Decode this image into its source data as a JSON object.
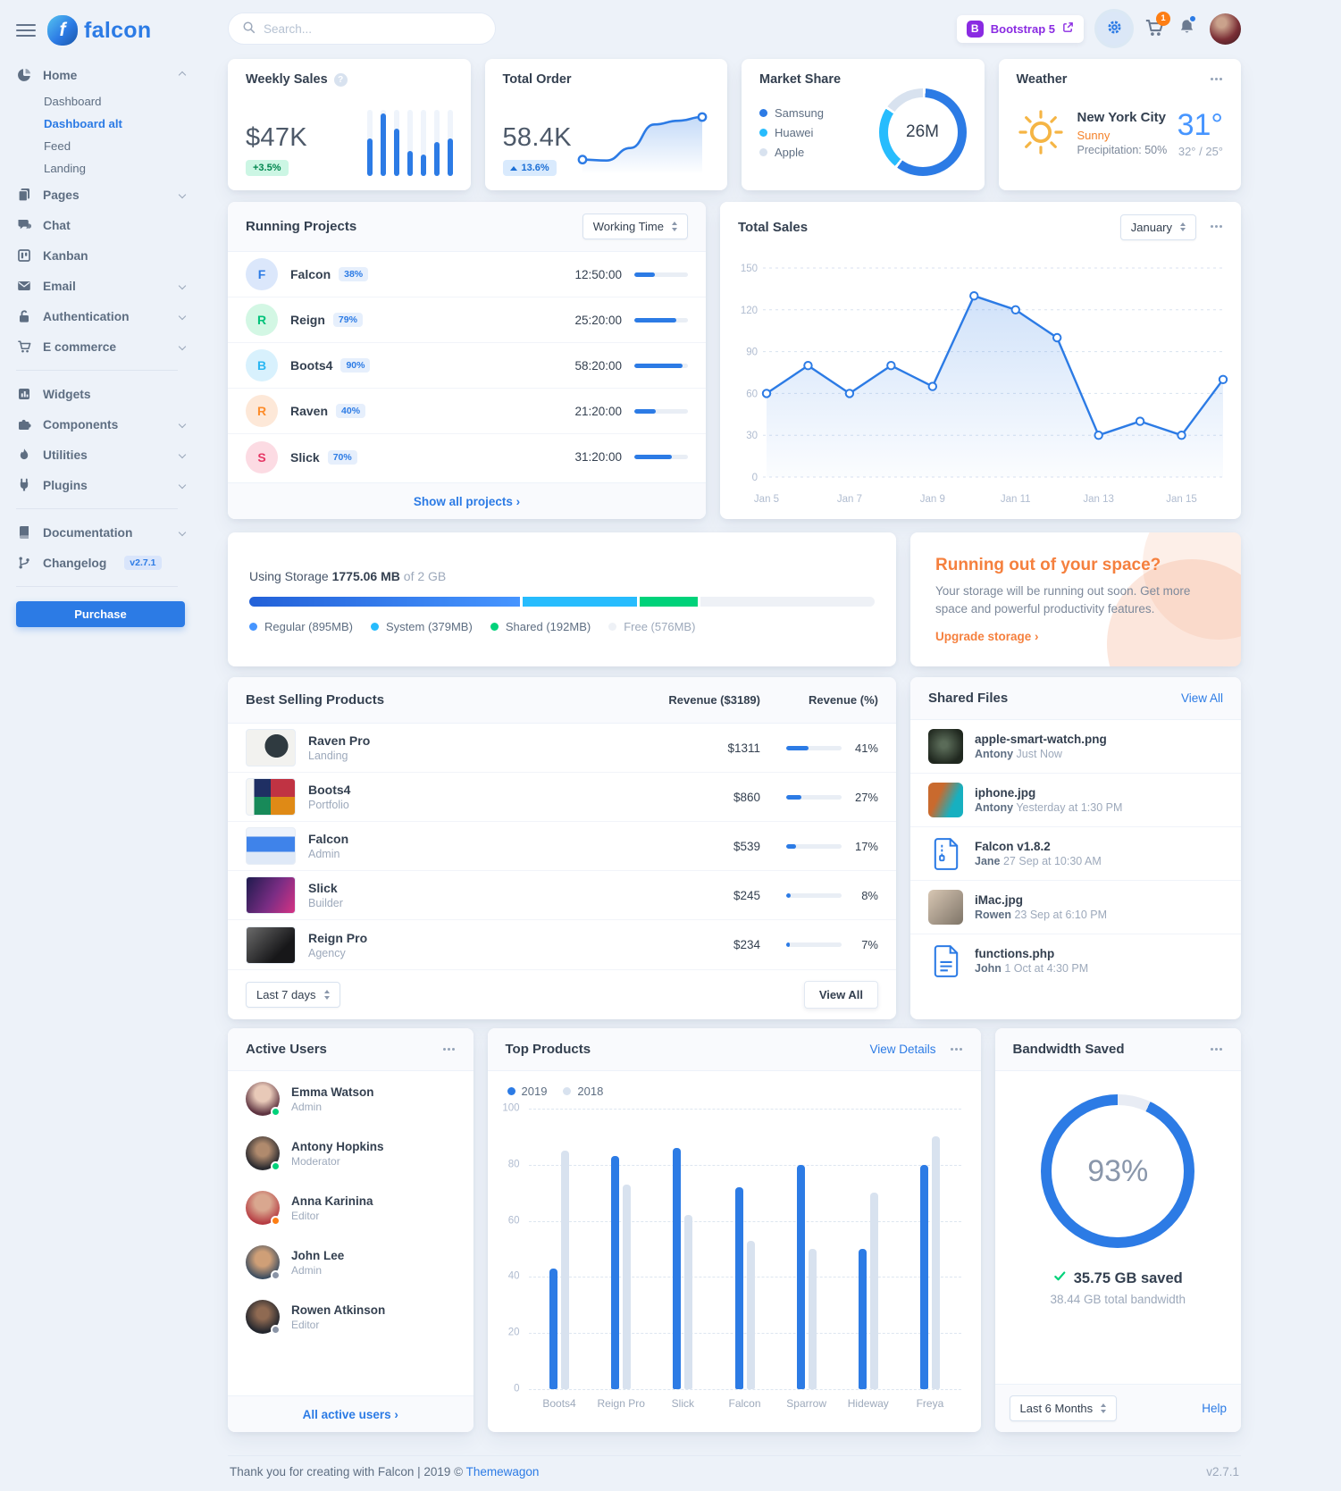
{
  "brand": {
    "name": "falcon",
    "initial": "f"
  },
  "header": {
    "search_placeholder": "Search...",
    "bootstrap_initial": "B",
    "bootstrap_label": "Bootstrap 5",
    "cart_count": "1"
  },
  "sidebar": {
    "home": {
      "label": "Home"
    },
    "home_children": [
      {
        "label": "Dashboard"
      },
      {
        "label": "Dashboard alt"
      },
      {
        "label": "Feed"
      },
      {
        "label": "Landing"
      }
    ],
    "group1": [
      {
        "label": "Pages"
      },
      {
        "label": "Chat"
      },
      {
        "label": "Kanban"
      },
      {
        "label": "Email"
      },
      {
        "label": "Authentication"
      },
      {
        "label": "E commerce"
      }
    ],
    "group2": [
      {
        "label": "Widgets"
      },
      {
        "label": "Components"
      },
      {
        "label": "Utilities"
      },
      {
        "label": "Plugins"
      }
    ],
    "group3": [
      {
        "label": "Documentation"
      },
      {
        "label": "Changelog"
      }
    ],
    "changelog_badge": "v2.7.1",
    "purchase_label": "Purchase"
  },
  "weekly_sales": {
    "title": "Weekly Sales",
    "value": "$47K",
    "badge": "+3.5%"
  },
  "total_order": {
    "title": "Total Order",
    "value": "58.4K",
    "badge_value": "13.6%"
  },
  "market_share": {
    "title": "Market Share",
    "center": "26M",
    "legend": [
      {
        "label": "Samsung"
      },
      {
        "label": "Huawei"
      },
      {
        "label": "Apple"
      }
    ]
  },
  "weather": {
    "title": "Weather",
    "city": "New York City",
    "condition": "Sunny",
    "precipitation": "Precipitation: 50%",
    "temp": "31°",
    "range": "32° / 25°"
  },
  "running_projects": {
    "title": "Running Projects",
    "filter": "Working Time",
    "rows": [
      {
        "initial": "F",
        "name": "Falcon",
        "badge": "38%",
        "time": "12:50:00",
        "progress": 38
      },
      {
        "initial": "R",
        "name": "Reign",
        "badge": "79%",
        "time": "25:20:00",
        "progress": 79
      },
      {
        "initial": "B",
        "name": "Boots4",
        "badge": "90%",
        "time": "58:20:00",
        "progress": 90
      },
      {
        "initial": "R",
        "name": "Raven",
        "badge": "40%",
        "time": "21:20:00",
        "progress": 40
      },
      {
        "initial": "S",
        "name": "Slick",
        "badge": "70%",
        "time": "31:20:00",
        "progress": 70
      }
    ],
    "footer": "Show all projects ›"
  },
  "total_sales": {
    "title": "Total Sales",
    "select": "January"
  },
  "storage": {
    "label_prefix": "Using Storage",
    "used": "1775.06 MB",
    "label_suffix": "of 2 GB",
    "legend": [
      {
        "label": "Regular (895MB)"
      },
      {
        "label": "System (379MB)"
      },
      {
        "label": "Shared (192MB)"
      },
      {
        "label": "Free (576MB)"
      }
    ]
  },
  "upgrade": {
    "title": "Running out of your space?",
    "body": "Your storage will be running out soon. Get more space and powerful productivity features.",
    "link": "Upgrade storage ›"
  },
  "best_selling": {
    "title": "Best Selling Products",
    "col_revenue": "Revenue ($3189)",
    "col_percent": "Revenue (%)",
    "rows": [
      {
        "name": "Raven Pro",
        "category": "Landing",
        "revenue": "$1311",
        "percent": "41%",
        "bar": 41
      },
      {
        "name": "Boots4",
        "category": "Portfolio",
        "revenue": "$860",
        "percent": "27%",
        "bar": 27
      },
      {
        "name": "Falcon",
        "category": "Admin",
        "revenue": "$539",
        "percent": "17%",
        "bar": 17
      },
      {
        "name": "Slick",
        "category": "Builder",
        "revenue": "$245",
        "percent": "8%",
        "bar": 8
      },
      {
        "name": "Reign Pro",
        "category": "Agency",
        "revenue": "$234",
        "percent": "7%",
        "bar": 7
      }
    ],
    "select": "Last 7 days",
    "view_all": "View All"
  },
  "shared_files": {
    "title": "Shared Files",
    "view_all": "View All",
    "files": [
      {
        "name": "apple-smart-watch.png",
        "by": "Antony",
        "time": "Just Now"
      },
      {
        "name": "iphone.jpg",
        "by": "Antony",
        "time": "Yesterday at 1:30 PM"
      },
      {
        "name": "Falcon v1.8.2",
        "by": "Jane",
        "time": "27 Sep at 10:30 AM"
      },
      {
        "name": "iMac.jpg",
        "by": "Rowen",
        "time": "23 Sep at 6:10 PM"
      },
      {
        "name": "functions.php",
        "by": "John",
        "time": "1 Oct at 4:30 PM"
      }
    ]
  },
  "active_users": {
    "title": "Active Users",
    "users": [
      {
        "name": "Emma Watson",
        "role": "Admin"
      },
      {
        "name": "Antony Hopkins",
        "role": "Moderator"
      },
      {
        "name": "Anna Karinina",
        "role": "Editor"
      },
      {
        "name": "John Lee",
        "role": "Admin"
      },
      {
        "name": "Rowen Atkinson",
        "role": "Editor"
      }
    ],
    "footer": "All active users ›"
  },
  "top_products": {
    "title": "Top Products",
    "view_details": "View Details",
    "legend_2019": "2019",
    "legend_2018": "2018"
  },
  "bandwidth": {
    "title": "Bandwidth Saved",
    "percent": "93%",
    "saved": "35.75 GB saved",
    "total": "38.44 GB total bandwidth",
    "select": "Last 6 Months",
    "help": "Help"
  },
  "page_footer": {
    "thanks": "Thank you for creating with Falcon | 2019 ©",
    "link": "Themewagon",
    "version": "v2.7.1"
  },
  "chart_data": [
    {
      "id": "weekly_sales",
      "type": "bar",
      "values": [
        120,
        200,
        150,
        80,
        70,
        110,
        120
      ],
      "ylim": [
        0,
        210
      ],
      "color": "#2c7be5",
      "track": "#eff4fb"
    },
    {
      "id": "total_order",
      "type": "area",
      "values": [
        20,
        18,
        45,
        96,
        104,
        112
      ],
      "color": "#2c7be5"
    },
    {
      "id": "market_share",
      "type": "pie",
      "center_label": "26M",
      "segments": [
        {
          "label": "Samsung",
          "value": 60,
          "color": "#2c7be5"
        },
        {
          "label": "Huawei",
          "value": 24,
          "color": "#27bcfd"
        },
        {
          "label": "Apple",
          "value": 16,
          "color": "#d8e2ef"
        }
      ]
    },
    {
      "id": "total_sales",
      "type": "line",
      "title": "Total Sales",
      "x": [
        "Jan 5",
        "Jan 6",
        "Jan 7",
        "Jan 8",
        "Jan 9",
        "Jan 10",
        "Jan 11",
        "Jan 12",
        "Jan 13",
        "Jan 14",
        "Jan 15",
        "Jan 16"
      ],
      "values": [
        60,
        80,
        60,
        80,
        65,
        130,
        120,
        100,
        30,
        40,
        30,
        70
      ],
      "yticks": [
        0,
        30,
        60,
        90,
        120,
        150
      ],
      "xtick_labels": [
        "Jan 5",
        "Jan 7",
        "Jan 9",
        "Jan 11",
        "Jan 13",
        "Jan 15"
      ],
      "ylim": [
        0,
        150
      ],
      "color": "#2c7be5",
      "grid": true,
      "legend_position": "none"
    },
    {
      "id": "storage",
      "type": "stacked-bar",
      "total_mb": 2048,
      "used_label": "1775.06 MB",
      "total_label": "2 GB",
      "segments": [
        {
          "label": "Regular",
          "mb": 895,
          "color": "#2c7be5",
          "gradient": [
            "#2361d8",
            "#4695ff"
          ]
        },
        {
          "label": "System",
          "mb": 379,
          "color": "#27bcfd"
        },
        {
          "label": "Shared",
          "mb": 192,
          "color": "#00d27a"
        },
        {
          "label": "Free",
          "mb": 576,
          "color": "#eef1f6"
        }
      ]
    },
    {
      "id": "top_products",
      "type": "bar",
      "categories": [
        "Boots4",
        "Reign Pro",
        "Slick",
        "Falcon",
        "Sparrow",
        "Hideway",
        "Freya"
      ],
      "series": [
        {
          "name": "2019",
          "color": "#2c7be5",
          "values": [
            43,
            83,
            86,
            72,
            80,
            50,
            80
          ]
        },
        {
          "name": "2018",
          "color": "#d8e2ef",
          "values": [
            85,
            73,
            62,
            53,
            50,
            70,
            90
          ]
        }
      ],
      "yticks": [
        0,
        20,
        40,
        60,
        80,
        100
      ],
      "ylim": [
        0,
        100
      ],
      "grid": true,
      "legend_position": "top-left"
    },
    {
      "id": "bandwidth",
      "type": "gauge",
      "percent": 93,
      "color": "#2c7be5",
      "track": "#e8ecf4"
    }
  ]
}
